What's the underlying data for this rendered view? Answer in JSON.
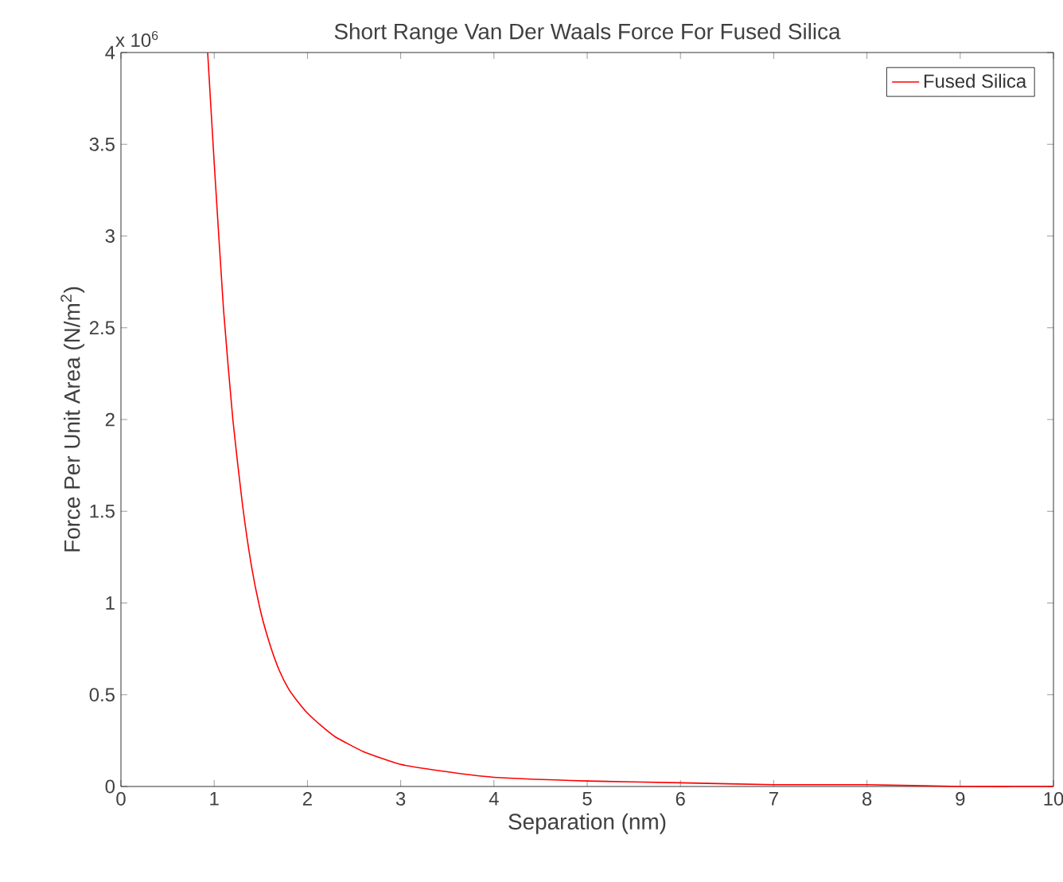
{
  "chart_data": {
    "type": "line",
    "title": "Short Range Van Der Waals Force For Fused Silica",
    "xlabel": "Separation (nm)",
    "ylabel": "Force Per Unit Area (N/m$^{2}$)",
    "annotations": [
      "x 10$^{6}$"
    ],
    "series": [
      {
        "name": "Fused Silica",
        "color": "#ff0000",
        "x": [
          0.93,
          1.0,
          1.1,
          1.2,
          1.3,
          1.4,
          1.5,
          1.6,
          1.7,
          1.8,
          1.9,
          2.0,
          2.15,
          2.3,
          2.6,
          3.0,
          3.5,
          4.0,
          5.0,
          6.0,
          7.0,
          8.0,
          9.0,
          10.0
        ],
        "values": [
          4.0,
          3.4,
          2.6,
          2.0,
          1.55,
          1.2,
          0.95,
          0.77,
          0.63,
          0.53,
          0.46,
          0.4,
          0.33,
          0.27,
          0.19,
          0.12,
          0.08,
          0.05,
          0.03,
          0.02,
          0.01,
          0.01,
          0.0,
          0.0
        ]
      }
    ],
    "xlim": [
      0,
      10
    ],
    "ylim": [
      0,
      4
    ],
    "xticks": [
      0,
      1,
      2,
      3,
      4,
      5,
      6,
      7,
      8,
      9,
      10
    ],
    "yticks": [
      0,
      0.5,
      1,
      1.5,
      2,
      2.5,
      3,
      3.5,
      4
    ],
    "legend": "top right",
    "grid": false,
    "marker": "none",
    "line_style": "solid"
  }
}
